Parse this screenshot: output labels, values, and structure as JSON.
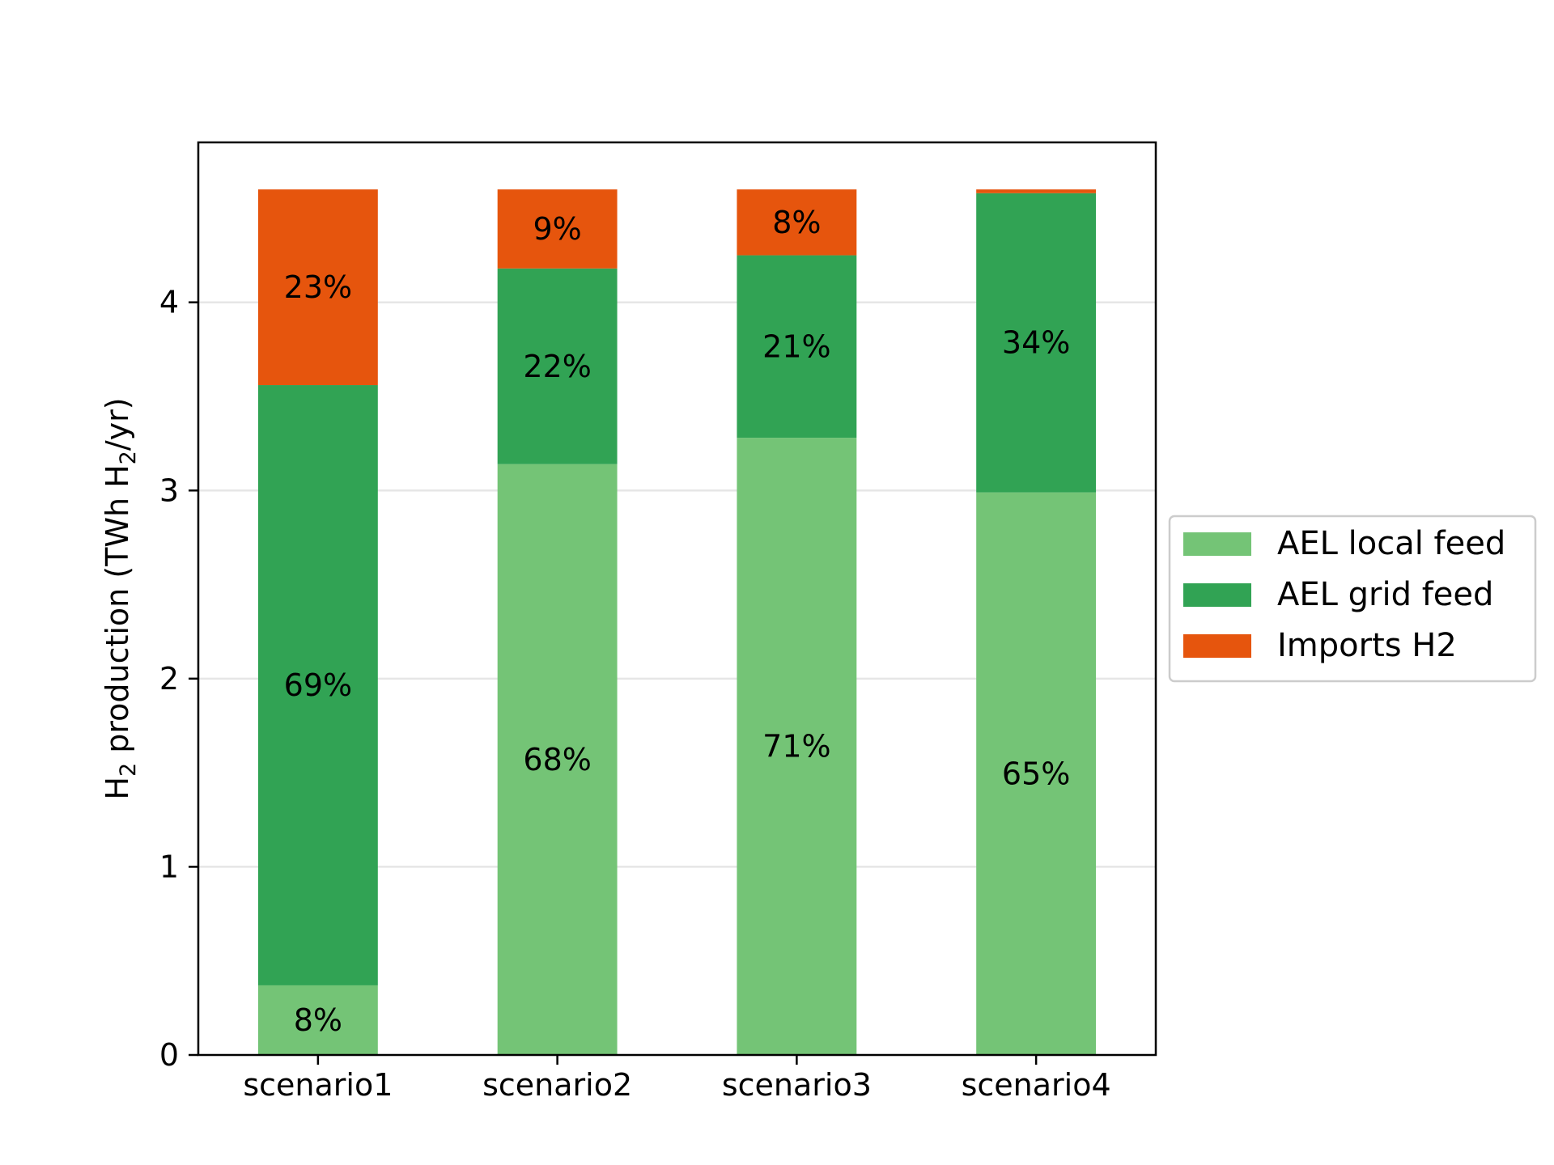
{
  "chart_data": {
    "type": "bar",
    "stacked": true,
    "title": "",
    "xlabel": "",
    "ylabel": {
      "parts": [
        "H",
        "2",
        " production  (TWh H",
        "2",
        "/yr)"
      ]
    },
    "ylim": [
      0,
      4.85
    ],
    "yticks": [
      0,
      1,
      2,
      3,
      4
    ],
    "grid": "horizontal",
    "legend_position": "right",
    "categories": [
      "scenario1",
      "scenario2",
      "scenario3",
      "scenario4"
    ],
    "series": [
      {
        "name": "AEL local feed",
        "color": "#74c476",
        "values": [
          0.37,
          3.14,
          3.28,
          2.99
        ],
        "labels": [
          "8%",
          "68%",
          "71%",
          "65%"
        ]
      },
      {
        "name": "AEL grid feed",
        "color": "#31a354",
        "values": [
          3.19,
          1.04,
          0.97,
          1.59
        ],
        "labels": [
          "69%",
          "22%",
          "21%",
          "34%"
        ]
      },
      {
        "name": "Imports H2",
        "color": "#e6550d",
        "values": [
          1.04,
          0.42,
          0.35,
          0.02
        ],
        "labels": [
          "23%",
          "9%",
          "8%",
          ""
        ]
      }
    ]
  }
}
